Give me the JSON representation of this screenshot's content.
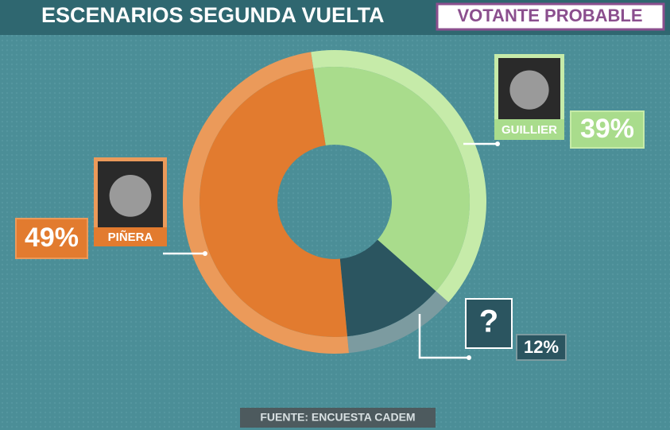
{
  "chart_data": {
    "type": "pie",
    "title": "ESCENARIOS SEGUNDA VUELTA",
    "subtitle": "VOTANTE PROBABLE",
    "source": "FUENTE: ENCUESTA CADEM",
    "categories": [
      "GUILLIER",
      "?",
      "PIÑERA"
    ],
    "values": [
      39,
      12,
      49
    ],
    "value_labels": [
      "39%",
      "12%",
      "49%"
    ],
    "colors": [
      "#a9dc8c",
      "#2b5560",
      "#e27b2f"
    ],
    "rim_colors": [
      "#c6eba9",
      "#7c9ba0",
      "#eb9a5a"
    ]
  }
}
